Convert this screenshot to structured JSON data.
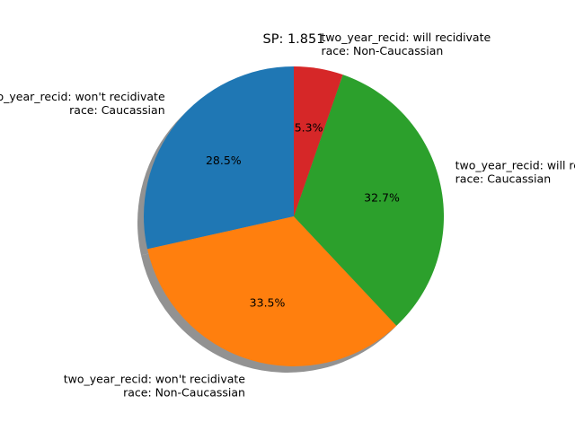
{
  "chart_data": {
    "type": "pie",
    "title": "SP: 1.851",
    "slices": [
      {
        "label_line1": "two_year_recid: won't recidivate",
        "label_line2": "race: Caucassian",
        "percent": 28.5,
        "pct_label": "28.5%",
        "color": "#1f77b4"
      },
      {
        "label_line1": "two_year_recid: won't recidivate",
        "label_line2": "race: Non-Caucassian",
        "percent": 33.5,
        "pct_label": "33.5%",
        "color": "#ff7f0e"
      },
      {
        "label_line1": "two_year_recid: will recidivate",
        "label_line2": "race: Caucassian",
        "percent": 32.7,
        "pct_label": "32.7%",
        "color": "#2ca02c"
      },
      {
        "label_line1": "two_year_recid: will recidivate",
        "label_line2": "race: Non-Caucassian",
        "percent": 5.3,
        "pct_label": "5.3%",
        "color": "#d62728"
      }
    ],
    "start_angle_deg": 90,
    "direction": "counterclockwise",
    "shadow": true
  }
}
